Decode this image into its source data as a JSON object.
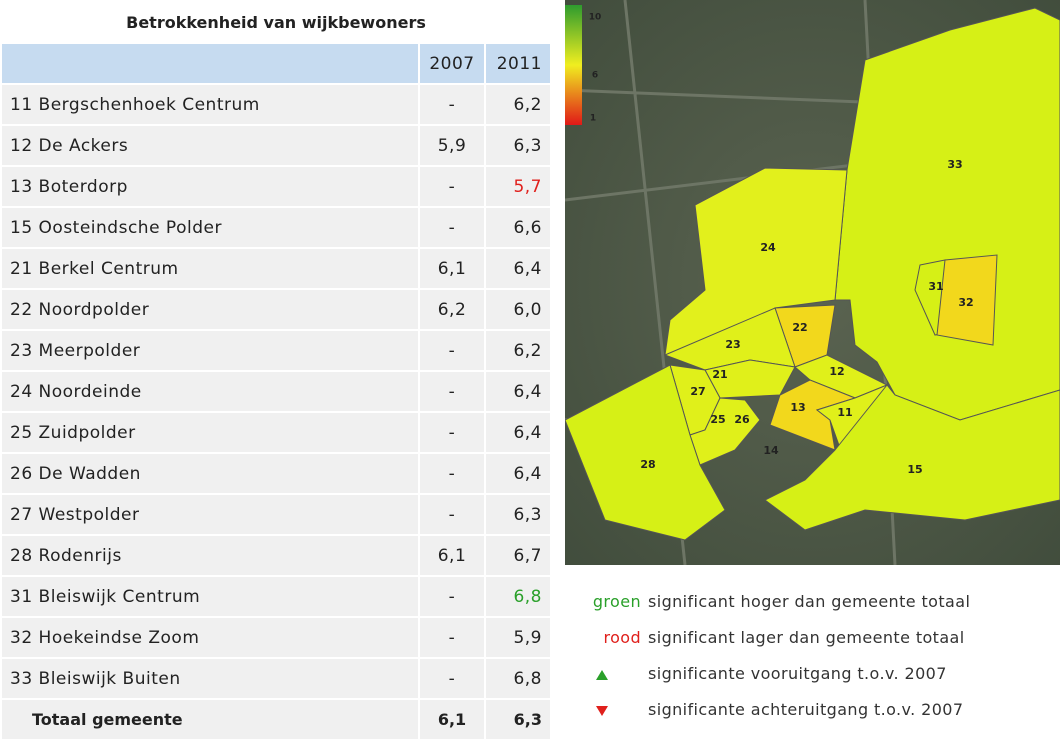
{
  "table": {
    "title": "Betrokkenheid van wijkbewoners",
    "columns": [
      "2007",
      "2011"
    ],
    "rows": [
      [
        "11 Bergschenhoek Centrum",
        "-",
        "6,2"
      ],
      [
        "12 De Ackers",
        "5,9",
        "6,3"
      ],
      [
        "13 Boterdorp",
        "-",
        "5,7"
      ],
      [
        "15 Oosteindsche Polder",
        "-",
        "6,6"
      ],
      [
        "21 Berkel Centrum",
        "6,1",
        "6,4"
      ],
      [
        "22 Noordpolder",
        "6,2",
        "6,0"
      ],
      [
        "23 Meerpolder",
        "-",
        "6,2"
      ],
      [
        "24 Noordeinde",
        "-",
        "6,4"
      ],
      [
        "25 Zuidpolder",
        "-",
        "6,4"
      ],
      [
        "26 De Wadden",
        "-",
        "6,4"
      ],
      [
        "27 Westpolder",
        "-",
        "6,3"
      ],
      [
        "28 Rodenrijs",
        "6,1",
        "6,7"
      ],
      [
        "31 Bleiswijk Centrum",
        "-",
        "6,8"
      ],
      [
        "32 Hoekeindse Zoom",
        "-",
        "5,9"
      ],
      [
        "33 Bleiswijk Buiten",
        "-",
        "6,8"
      ]
    ],
    "total": [
      "Totaal gemeente",
      "6,1",
      "6,3"
    ]
  },
  "map": {
    "scale": [
      "10",
      "6",
      "1"
    ],
    "areas": [
      "33",
      "24",
      "31",
      "32",
      "22",
      "23",
      "21",
      "12",
      "27",
      "13",
      "11",
      "25",
      "26",
      "14",
      "28",
      "15"
    ]
  },
  "legend": [
    {
      "key": "groen",
      "text": "significant hoger dan gemeente totaal"
    },
    {
      "key": "rood",
      "text": "significant lager dan gemeente totaal"
    },
    {
      "text": "significante vooruitgang t.o.v. 2007"
    },
    {
      "text": "significante achteruitgang t.o.v. 2007"
    }
  ]
}
